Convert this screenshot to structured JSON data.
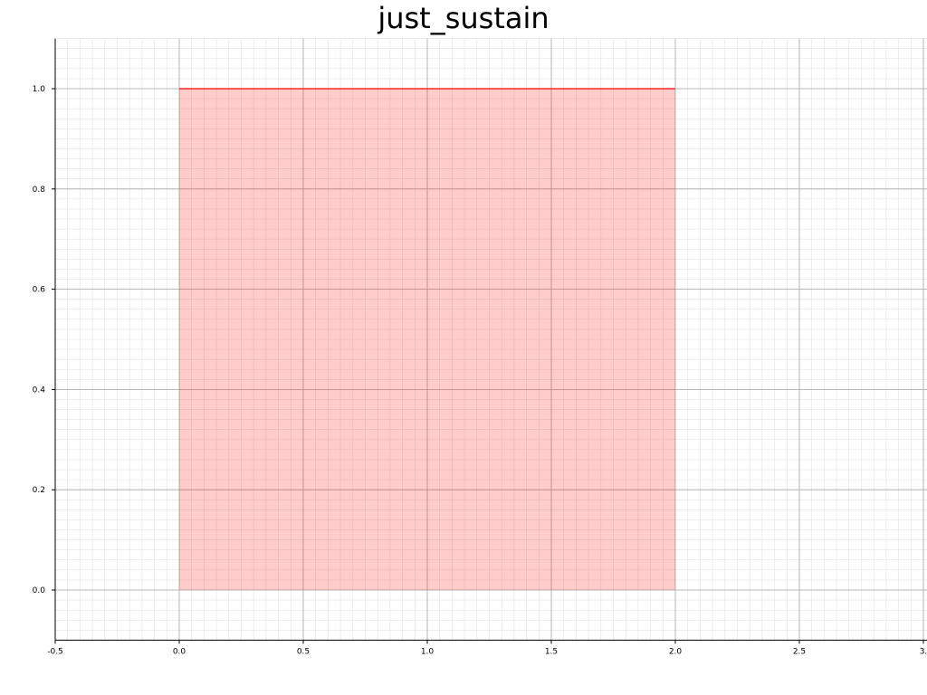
{
  "chart_data": {
    "type": "area",
    "title": "just_sustain",
    "xlabel": "",
    "ylabel": "",
    "xlim": [
      -0.5,
      3.0
    ],
    "ylim": [
      -0.1,
      1.1
    ],
    "x_ticks": [
      -0.5,
      0.0,
      0.5,
      1.0,
      1.5,
      2.0,
      2.5,
      3.0
    ],
    "x_tick_labels": [
      "-0.5",
      "0.0",
      "0.5",
      "1.0",
      "1.5",
      "2.0",
      "2.5",
      "3."
    ],
    "y_ticks": [
      0.0,
      0.2,
      0.4,
      0.6,
      0.8,
      1.0
    ],
    "y_tick_labels": [
      "0.0",
      "0.2",
      "0.4",
      "0.6",
      "0.8",
      "1.0"
    ],
    "x_minor_step": 0.05,
    "y_minor_step": 0.02,
    "grid": true,
    "series": [
      {
        "x": [
          0.0,
          2.0
        ],
        "y": [
          1.0,
          1.0
        ],
        "line_color": "#ff0000",
        "fill_color": "#ff0000",
        "fill_opacity": 0.2,
        "fill_to": 0.0
      }
    ]
  }
}
